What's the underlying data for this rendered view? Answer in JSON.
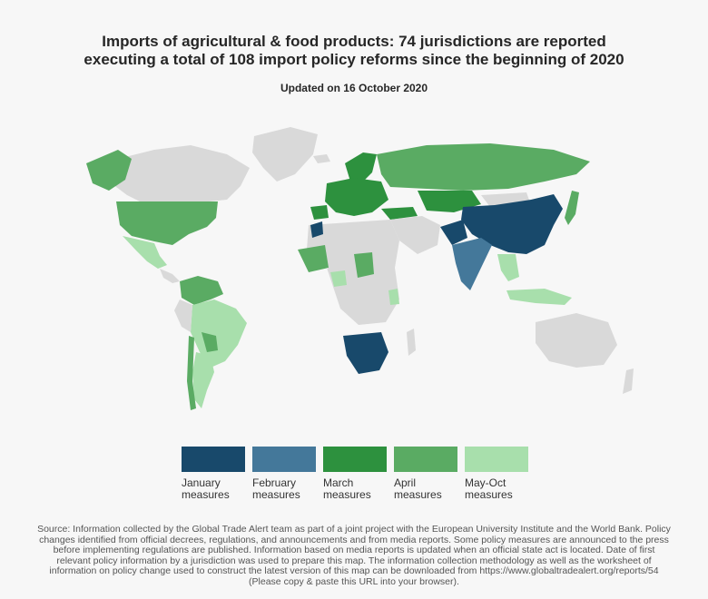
{
  "title_line1": "Imports of agricultural & food products: 74 jurisdictions are reported",
  "title_line2": "executing a total of 108 import policy reforms since the beginning of 2020",
  "subtitle": "Updated on 16 October 2020",
  "legend": [
    {
      "label": "January\nmeasures",
      "color": "#18496b"
    },
    {
      "label": "February\nmeasures",
      "color": "#44789a"
    },
    {
      "label": "March\nmeasures",
      "color": "#2d913e"
    },
    {
      "label": "April\nmeasures",
      "color": "#5aab63"
    },
    {
      "label": "May-Oct\nmeasures",
      "color": "#a8dfac"
    }
  ],
  "colors": {
    "no_data": "#d9d9d9",
    "background": "#f7f7f7"
  },
  "source": "Source: Information collected by the Global Trade Alert team as part of a joint project with the European University Institute and the World Bank. Policy changes identified from official decrees, regulations, and announcements and from media reports. Some policy measures are announced to the press before implementing regulations are published. Information based on media reports is updated when an official state act is located. Date of first relevant policy information by a jurisdiction was used to prepare this map. The information collection methodology as well as the worksheet of information on policy change used to construct the latest version of this map can be downloaded from https://www.globaltradealert.org/reports/54 (Please copy & paste this URL into your browser)."
}
